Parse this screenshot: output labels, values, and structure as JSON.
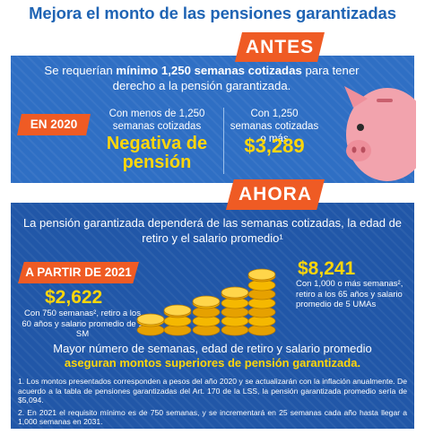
{
  "title": "Mejora el monto de las pensiones garantizadas",
  "antes": {
    "tag": "ANTES",
    "lead_pre": "Se requerían ",
    "lead_bold": "mínimo 1,250 semanas cotizadas",
    "lead_post": " para tener derecho a la pensión garantizada.",
    "year_badge": "EN 2020",
    "col_a_text": "Con menos de 1,250 semanas cotizadas",
    "col_a_value": "Negativa de pensión",
    "col_b_text": "Con 1,250 semanas cotizadas o más",
    "col_b_value": "$3,289"
  },
  "ahora": {
    "tag": "AHORA",
    "lead": "La pensión garantizada dependerá de las semanas cotizadas, la edad de retiro y el salario promedio¹",
    "year_badge": "A PARTIR DE 2021",
    "low_value": "$2,622",
    "low_text": "Con 750 semanas², retiro a los 60 años y salario promedio de 1 SM",
    "high_value": "$8,241",
    "high_text": "Con 1,000 o más semanas², retiro a los 65 años y salario promedio de 5 UMAs",
    "conclusion_1": "Mayor número de semanas, edad de retiro y salario promedio",
    "conclusion_2": "aseguran montos superiores de pensión garantizada.",
    "note_1": "1. Los montos presentados corresponden a pesos del año 2020 y se actualizarán con la inflación anualmente. De acuerdo a la tabla de pensiones garantizadas del Art. 170 de la LSS, la pensión garantizada promedio sería de $5,094.",
    "note_2": "2. En 2021 el requisito mínimo es de 750 semanas, y se incrementará en 25 semanas cada año hasta llegar a 1,000 semanas en 2031."
  },
  "colors": {
    "title": "#1f64b4",
    "panel_antes": "#2f6fc4",
    "panel_ahora": "#2157a8",
    "accent_orange": "#ef5b24",
    "accent_yellow": "#ffd60a",
    "pig_pink": "#f2a3ad"
  },
  "icons": [
    "piggy-bank-icon",
    "coin-stacks-icon"
  ]
}
